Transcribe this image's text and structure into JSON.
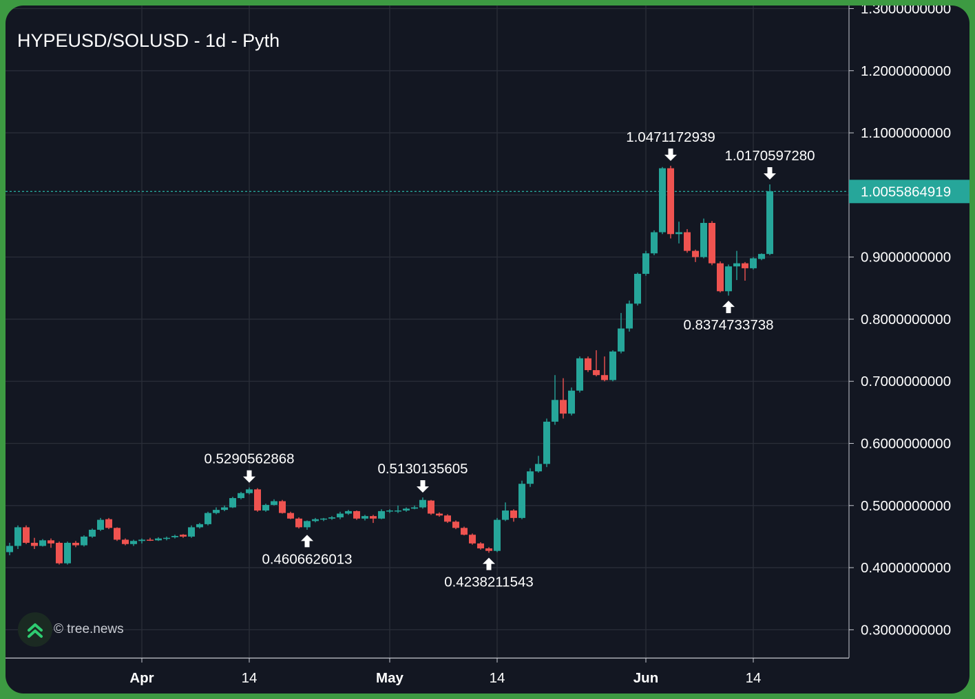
{
  "title": "HYPEUSD/SOLUSD - 1d - Pyth",
  "watermark": {
    "text": "© tree.news",
    "icon": "tree-news-logo-icon"
  },
  "colors": {
    "background": "#131722",
    "frame": "#3d9a42",
    "grid": "#2a2e39",
    "up": "#26a69a",
    "down": "#ef5350",
    "price_line": "#26a69a",
    "text": "#ffffff"
  },
  "chart_data": {
    "type": "candlestick",
    "title": "HYPEUSD/SOLUSD - 1d - Pyth",
    "interval": "1d",
    "ylim": [
      0.255,
      1.305
    ],
    "y_ticks": [
      "0.3000000000",
      "0.4000000000",
      "0.5000000000",
      "0.6000000000",
      "0.7000000000",
      "0.8000000000",
      "0.9000000000",
      "1.0000000000",
      "1.1000000000",
      "1.2000000000",
      "1.3000000000"
    ],
    "x_ticks": [
      {
        "label": "Apr",
        "bold": true,
        "date": "2025-04-01"
      },
      {
        "label": "14",
        "bold": false,
        "date": "2025-04-14"
      },
      {
        "label": "May",
        "bold": true,
        "date": "2025-05-01"
      },
      {
        "label": "14",
        "bold": false,
        "date": "2025-05-14"
      },
      {
        "label": "Jun",
        "bold": true,
        "date": "2025-06-01"
      },
      {
        "label": "14",
        "bold": false,
        "date": "2025-06-14"
      }
    ],
    "x_range": [
      "2025-03-16",
      "2025-06-27"
    ],
    "grid": true,
    "last_price": "1.0055864919",
    "last_price_value": 1.0055864919,
    "candles": [
      {
        "date": "2025-03-16",
        "open": 0.425,
        "high": 0.44,
        "low": 0.42,
        "close": 0.435
      },
      {
        "date": "2025-03-17",
        "open": 0.435,
        "high": 0.468,
        "low": 0.43,
        "close": 0.465
      },
      {
        "date": "2025-03-18",
        "open": 0.465,
        "high": 0.468,
        "low": 0.438,
        "close": 0.44
      },
      {
        "date": "2025-03-19",
        "open": 0.44,
        "high": 0.448,
        "low": 0.43,
        "close": 0.435
      },
      {
        "date": "2025-03-20",
        "open": 0.435,
        "high": 0.446,
        "low": 0.434,
        "close": 0.444
      },
      {
        "date": "2025-03-21",
        "open": 0.444,
        "high": 0.447,
        "low": 0.432,
        "close": 0.439
      },
      {
        "date": "2025-03-22",
        "open": 0.44,
        "high": 0.442,
        "low": 0.405,
        "close": 0.407
      },
      {
        "date": "2025-03-23",
        "open": 0.407,
        "high": 0.442,
        "low": 0.405,
        "close": 0.44
      },
      {
        "date": "2025-03-24",
        "open": 0.44,
        "high": 0.443,
        "low": 0.433,
        "close": 0.436
      },
      {
        "date": "2025-03-25",
        "open": 0.436,
        "high": 0.452,
        "low": 0.434,
        "close": 0.45
      },
      {
        "date": "2025-03-26",
        "open": 0.45,
        "high": 0.463,
        "low": 0.448,
        "close": 0.461
      },
      {
        "date": "2025-03-27",
        "open": 0.461,
        "high": 0.48,
        "low": 0.459,
        "close": 0.477
      },
      {
        "date": "2025-03-28",
        "open": 0.478,
        "high": 0.48,
        "low": 0.462,
        "close": 0.464
      },
      {
        "date": "2025-03-29",
        "open": 0.464,
        "high": 0.465,
        "low": 0.443,
        "close": 0.445
      },
      {
        "date": "2025-03-30",
        "open": 0.445,
        "high": 0.447,
        "low": 0.436,
        "close": 0.438
      },
      {
        "date": "2025-03-31",
        "open": 0.438,
        "high": 0.445,
        "low": 0.435,
        "close": 0.443
      },
      {
        "date": "2025-04-01",
        "open": 0.443,
        "high": 0.447,
        "low": 0.439,
        "close": 0.445
      },
      {
        "date": "2025-04-02",
        "open": 0.445,
        "high": 0.448,
        "low": 0.443,
        "close": 0.444
      },
      {
        "date": "2025-04-03",
        "open": 0.444,
        "high": 0.449,
        "low": 0.443,
        "close": 0.447
      },
      {
        "date": "2025-04-04",
        "open": 0.447,
        "high": 0.45,
        "low": 0.444,
        "close": 0.448
      },
      {
        "date": "2025-04-05",
        "open": 0.449,
        "high": 0.453,
        "low": 0.447,
        "close": 0.451
      },
      {
        "date": "2025-04-06",
        "open": 0.453,
        "high": 0.454,
        "low": 0.448,
        "close": 0.45
      },
      {
        "date": "2025-04-07",
        "open": 0.45,
        "high": 0.468,
        "low": 0.448,
        "close": 0.465
      },
      {
        "date": "2025-04-08",
        "open": 0.465,
        "high": 0.472,
        "low": 0.463,
        "close": 0.47
      },
      {
        "date": "2025-04-09",
        "open": 0.47,
        "high": 0.49,
        "low": 0.468,
        "close": 0.488
      },
      {
        "date": "2025-04-10",
        "open": 0.488,
        "high": 0.497,
        "low": 0.486,
        "close": 0.493
      },
      {
        "date": "2025-04-11",
        "open": 0.493,
        "high": 0.5,
        "low": 0.491,
        "close": 0.497
      },
      {
        "date": "2025-04-12",
        "open": 0.497,
        "high": 0.514,
        "low": 0.496,
        "close": 0.512
      },
      {
        "date": "2025-04-13",
        "open": 0.512,
        "high": 0.522,
        "low": 0.51,
        "close": 0.52
      },
      {
        "date": "2025-04-14",
        "open": 0.52,
        "high": 0.529,
        "low": 0.518,
        "close": 0.526
      },
      {
        "date": "2025-04-15",
        "open": 0.526,
        "high": 0.528,
        "low": 0.49,
        "close": 0.492
      },
      {
        "date": "2025-04-16",
        "open": 0.492,
        "high": 0.503,
        "low": 0.49,
        "close": 0.501
      },
      {
        "date": "2025-04-17",
        "open": 0.501,
        "high": 0.51,
        "low": 0.5,
        "close": 0.507
      },
      {
        "date": "2025-04-18",
        "open": 0.507,
        "high": 0.509,
        "low": 0.487,
        "close": 0.488
      },
      {
        "date": "2025-04-19",
        "open": 0.488,
        "high": 0.49,
        "low": 0.478,
        "close": 0.479
      },
      {
        "date": "2025-04-20",
        "open": 0.479,
        "high": 0.481,
        "low": 0.463,
        "close": 0.465
      },
      {
        "date": "2025-04-21",
        "open": 0.465,
        "high": 0.476,
        "low": 0.461,
        "close": 0.475
      },
      {
        "date": "2025-04-22",
        "open": 0.475,
        "high": 0.48,
        "low": 0.473,
        "close": 0.478
      },
      {
        "date": "2025-04-23",
        "open": 0.478,
        "high": 0.48,
        "low": 0.475,
        "close": 0.479
      },
      {
        "date": "2025-04-24",
        "open": 0.479,
        "high": 0.483,
        "low": 0.477,
        "close": 0.481
      },
      {
        "date": "2025-04-25",
        "open": 0.481,
        "high": 0.49,
        "low": 0.478,
        "close": 0.487
      },
      {
        "date": "2025-04-26",
        "open": 0.487,
        "high": 0.493,
        "low": 0.485,
        "close": 0.491
      },
      {
        "date": "2025-04-27",
        "open": 0.491,
        "high": 0.492,
        "low": 0.477,
        "close": 0.479
      },
      {
        "date": "2025-04-28",
        "open": 0.479,
        "high": 0.485,
        "low": 0.476,
        "close": 0.483
      },
      {
        "date": "2025-04-29",
        "open": 0.483,
        "high": 0.485,
        "low": 0.472,
        "close": 0.479
      },
      {
        "date": "2025-04-30",
        "open": 0.479,
        "high": 0.494,
        "low": 0.478,
        "close": 0.491
      },
      {
        "date": "2025-05-01",
        "open": 0.491,
        "high": 0.494,
        "low": 0.488,
        "close": 0.492
      },
      {
        "date": "2025-05-02",
        "open": 0.492,
        "high": 0.5,
        "low": 0.488,
        "close": 0.492
      },
      {
        "date": "2025-05-03",
        "open": 0.492,
        "high": 0.497,
        "low": 0.49,
        "close": 0.495
      },
      {
        "date": "2025-05-04",
        "open": 0.495,
        "high": 0.5,
        "low": 0.494,
        "close": 0.497
      },
      {
        "date": "2025-05-05",
        "open": 0.497,
        "high": 0.513,
        "low": 0.495,
        "close": 0.509
      },
      {
        "date": "2025-05-06",
        "open": 0.508,
        "high": 0.509,
        "low": 0.485,
        "close": 0.487
      },
      {
        "date": "2025-05-07",
        "open": 0.487,
        "high": 0.489,
        "low": 0.482,
        "close": 0.484
      },
      {
        "date": "2025-05-08",
        "open": 0.484,
        "high": 0.486,
        "low": 0.472,
        "close": 0.474
      },
      {
        "date": "2025-05-09",
        "open": 0.474,
        "high": 0.476,
        "low": 0.462,
        "close": 0.464
      },
      {
        "date": "2025-05-10",
        "open": 0.464,
        "high": 0.466,
        "low": 0.452,
        "close": 0.453
      },
      {
        "date": "2025-05-11",
        "open": 0.453,
        "high": 0.455,
        "low": 0.437,
        "close": 0.439
      },
      {
        "date": "2025-05-12",
        "open": 0.439,
        "high": 0.441,
        "low": 0.429,
        "close": 0.431
      },
      {
        "date": "2025-05-13",
        "open": 0.431,
        "high": 0.433,
        "low": 0.424,
        "close": 0.427
      },
      {
        "date": "2025-05-14",
        "open": 0.427,
        "high": 0.48,
        "low": 0.425,
        "close": 0.477
      },
      {
        "date": "2025-05-15",
        "open": 0.477,
        "high": 0.505,
        "low": 0.475,
        "close": 0.492
      },
      {
        "date": "2025-05-16",
        "open": 0.492,
        "high": 0.494,
        "low": 0.474,
        "close": 0.48
      },
      {
        "date": "2025-05-17",
        "open": 0.48,
        "high": 0.54,
        "low": 0.478,
        "close": 0.535
      },
      {
        "date": "2025-05-18",
        "open": 0.535,
        "high": 0.56,
        "low": 0.53,
        "close": 0.555
      },
      {
        "date": "2025-05-19",
        "open": 0.555,
        "high": 0.58,
        "low": 0.553,
        "close": 0.567
      },
      {
        "date": "2025-05-20",
        "open": 0.567,
        "high": 0.64,
        "low": 0.562,
        "close": 0.635
      },
      {
        "date": "2025-05-21",
        "open": 0.635,
        "high": 0.71,
        "low": 0.63,
        "close": 0.67
      },
      {
        "date": "2025-05-22",
        "open": 0.67,
        "high": 0.705,
        "low": 0.64,
        "close": 0.648
      },
      {
        "date": "2025-05-23",
        "open": 0.648,
        "high": 0.69,
        "low": 0.645,
        "close": 0.685
      },
      {
        "date": "2025-05-24",
        "open": 0.685,
        "high": 0.74,
        "low": 0.682,
        "close": 0.737
      },
      {
        "date": "2025-05-25",
        "open": 0.737,
        "high": 0.74,
        "low": 0.715,
        "close": 0.718
      },
      {
        "date": "2025-05-26",
        "open": 0.718,
        "high": 0.75,
        "low": 0.708,
        "close": 0.71
      },
      {
        "date": "2025-05-27",
        "open": 0.71,
        "high": 0.74,
        "low": 0.7,
        "close": 0.702
      },
      {
        "date": "2025-05-28",
        "open": 0.702,
        "high": 0.75,
        "low": 0.7,
        "close": 0.748
      },
      {
        "date": "2025-05-29",
        "open": 0.748,
        "high": 0.81,
        "low": 0.745,
        "close": 0.785
      },
      {
        "date": "2025-05-30",
        "open": 0.785,
        "high": 0.83,
        "low": 0.78,
        "close": 0.825
      },
      {
        "date": "2025-05-31",
        "open": 0.825,
        "high": 0.875,
        "low": 0.822,
        "close": 0.873
      },
      {
        "date": "2025-06-01",
        "open": 0.873,
        "high": 0.91,
        "low": 0.87,
        "close": 0.906
      },
      {
        "date": "2025-06-02",
        "open": 0.906,
        "high": 0.943,
        "low": 0.903,
        "close": 0.94
      },
      {
        "date": "2025-06-03",
        "open": 0.94,
        "high": 1.045,
        "low": 0.937,
        "close": 1.043
      },
      {
        "date": "2025-06-04",
        "open": 1.043,
        "high": 1.047,
        "low": 0.93,
        "close": 0.937
      },
      {
        "date": "2025-06-05",
        "open": 0.937,
        "high": 0.957,
        "low": 0.922,
        "close": 0.94
      },
      {
        "date": "2025-06-06",
        "open": 0.94,
        "high": 0.945,
        "low": 0.907,
        "close": 0.91
      },
      {
        "date": "2025-06-07",
        "open": 0.91,
        "high": 0.912,
        "low": 0.892,
        "close": 0.9
      },
      {
        "date": "2025-06-08",
        "open": 0.9,
        "high": 0.962,
        "low": 0.898,
        "close": 0.955
      },
      {
        "date": "2025-06-09",
        "open": 0.955,
        "high": 0.958,
        "low": 0.887,
        "close": 0.89
      },
      {
        "date": "2025-06-10",
        "open": 0.89,
        "high": 0.893,
        "low": 0.843,
        "close": 0.845
      },
      {
        "date": "2025-06-11",
        "open": 0.845,
        "high": 0.888,
        "low": 0.838,
        "close": 0.885
      },
      {
        "date": "2025-06-12",
        "open": 0.885,
        "high": 0.91,
        "low": 0.863,
        "close": 0.89
      },
      {
        "date": "2025-06-13",
        "open": 0.89,
        "high": 0.892,
        "low": 0.862,
        "close": 0.882
      },
      {
        "date": "2025-06-14",
        "open": 0.882,
        "high": 0.9,
        "low": 0.88,
        "close": 0.898
      },
      {
        "date": "2025-06-15",
        "open": 0.897,
        "high": 0.906,
        "low": 0.895,
        "close": 0.905
      },
      {
        "date": "2025-06-16",
        "open": 0.905,
        "high": 1.017,
        "low": 0.903,
        "close": 1.006
      }
    ],
    "annotations": [
      {
        "label": "0.5290562868",
        "type": "high",
        "date": "2025-04-14",
        "value": 0.5290562868
      },
      {
        "label": "0.4606626013",
        "type": "low",
        "date": "2025-04-21",
        "value": 0.4606626013
      },
      {
        "label": "0.5130135605",
        "type": "high",
        "date": "2025-05-05",
        "value": 0.5130135605
      },
      {
        "label": "0.4238211543",
        "type": "low",
        "date": "2025-05-13",
        "value": 0.4238211543
      },
      {
        "label": "1.0471172939",
        "type": "high",
        "date": "2025-06-04",
        "value": 1.0471172939
      },
      {
        "label": "0.8374733738",
        "type": "low",
        "date": "2025-06-11",
        "value": 0.8374733738
      },
      {
        "label": "1.0170597280",
        "type": "high",
        "date": "2025-06-16",
        "value": 1.017059728
      }
    ]
  }
}
